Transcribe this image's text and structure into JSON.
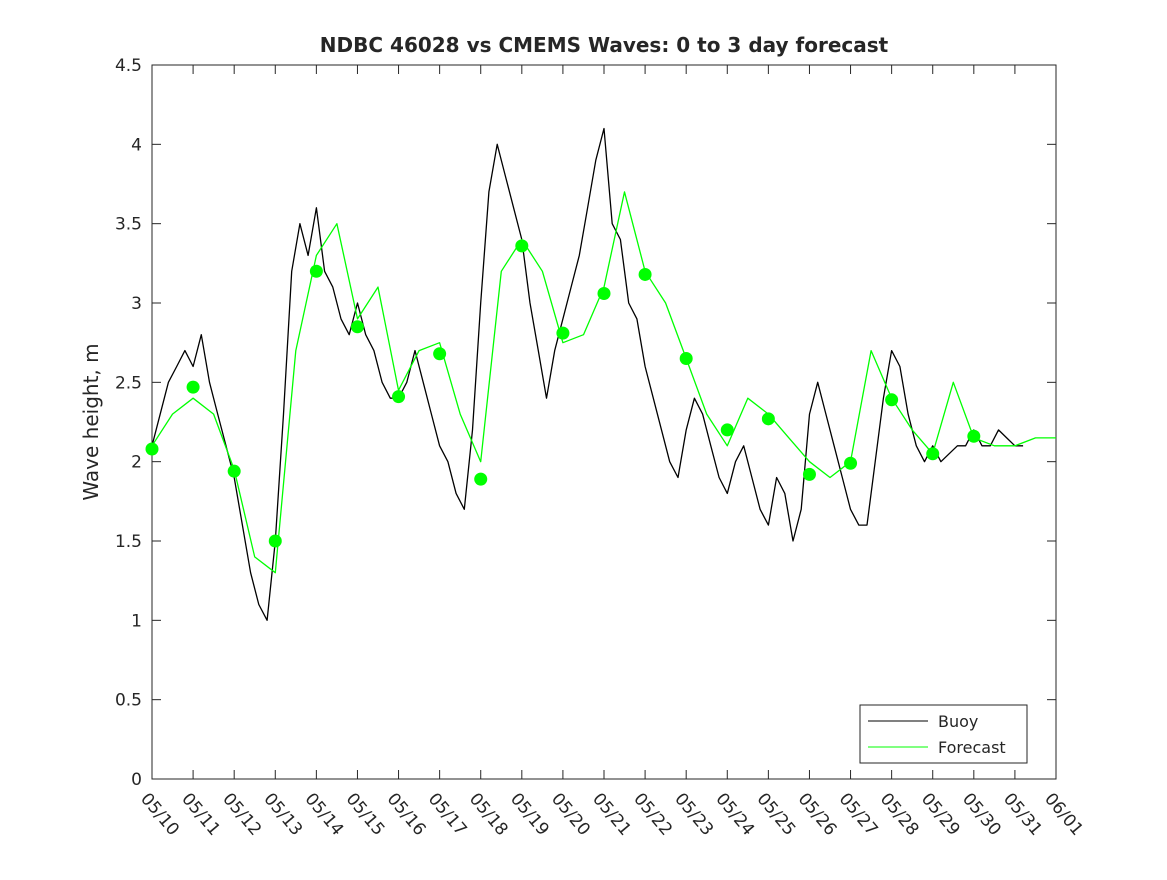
{
  "chart_data": {
    "type": "line",
    "title": "NDBC 46028 vs CMEMS Waves: 0 to 3 day forecast",
    "xlabel": "",
    "ylabel": "Wave height, m",
    "xlim": [
      0,
      22
    ],
    "ylim": [
      0,
      4.5
    ],
    "yticks": [
      0,
      0.5,
      1,
      1.5,
      2,
      2.5,
      3,
      3.5,
      4,
      4.5
    ],
    "xtick_labels": [
      "05/10",
      "05/11",
      "05/12",
      "05/13",
      "05/14",
      "05/15",
      "05/16",
      "05/17",
      "05/18",
      "05/19",
      "05/20",
      "05/21",
      "05/22",
      "05/23",
      "05/24",
      "05/25",
      "05/26",
      "05/27",
      "05/28",
      "05/29",
      "05/30",
      "05/31",
      "06/01"
    ],
    "legend": {
      "position": "bottom-right",
      "entries": [
        "Buoy",
        "Forecast"
      ]
    },
    "grid": false,
    "colors": {
      "buoy": "#000000",
      "forecast": "#00ff00",
      "axes": "#262626"
    },
    "series": [
      {
        "name": "Buoy",
        "x": [
          0,
          0.2,
          0.4,
          0.6,
          0.8,
          1.0,
          1.2,
          1.4,
          1.6,
          1.8,
          2.0,
          2.2,
          2.4,
          2.6,
          2.8,
          3.0,
          3.2,
          3.4,
          3.6,
          3.8,
          4.0,
          4.2,
          4.4,
          4.6,
          4.8,
          5.0,
          5.2,
          5.4,
          5.6,
          5.8,
          6.0,
          6.2,
          6.4,
          6.6,
          6.8,
          7.0,
          7.2,
          7.4,
          7.6,
          7.8,
          8.0,
          8.2,
          8.4,
          8.6,
          8.8,
          9.0,
          9.2,
          9.4,
          9.6,
          9.8,
          10.0,
          10.2,
          10.4,
          10.6,
          10.8,
          11.0,
          11.2,
          11.4,
          11.6,
          11.8,
          12.0,
          12.2,
          12.4,
          12.6,
          12.8,
          13.0,
          13.2,
          13.4,
          13.6,
          13.8,
          14.0,
          14.2,
          14.4,
          14.6,
          14.8,
          15.0,
          15.2,
          15.4,
          15.6,
          15.8,
          16.0,
          16.2,
          16.4,
          16.6,
          16.8,
          17.0,
          17.2,
          17.4,
          17.6,
          17.8,
          18.0,
          18.2,
          18.4,
          18.6,
          18.8,
          19.0,
          19.2,
          19.4,
          19.6,
          19.8,
          20.0,
          20.2,
          20.4,
          20.6,
          20.8,
          21.0,
          21.2
        ],
        "y": [
          2.1,
          2.3,
          2.5,
          2.6,
          2.7,
          2.6,
          2.8,
          2.5,
          2.3,
          2.1,
          1.9,
          1.6,
          1.3,
          1.1,
          1.0,
          1.5,
          2.3,
          3.2,
          3.5,
          3.3,
          3.6,
          3.2,
          3.1,
          2.9,
          2.8,
          3.0,
          2.8,
          2.7,
          2.5,
          2.4,
          2.4,
          2.5,
          2.7,
          2.5,
          2.3,
          2.1,
          2.0,
          1.8,
          1.7,
          2.2,
          3.0,
          3.7,
          4.0,
          3.8,
          3.6,
          3.4,
          3.0,
          2.7,
          2.4,
          2.7,
          2.9,
          3.1,
          3.3,
          3.6,
          3.9,
          4.1,
          3.5,
          3.4,
          3.0,
          2.9,
          2.6,
          2.4,
          2.2,
          2.0,
          1.9,
          2.2,
          2.4,
          2.3,
          2.1,
          1.9,
          1.8,
          2.0,
          2.1,
          1.9,
          1.7,
          1.6,
          1.9,
          1.8,
          1.5,
          1.7,
          2.3,
          2.5,
          2.3,
          2.1,
          1.9,
          1.7,
          1.6,
          1.6,
          2.0,
          2.4,
          2.7,
          2.6,
          2.3,
          2.1,
          2.0,
          2.1,
          2.0,
          2.05,
          2.1,
          2.1,
          2.2,
          2.1,
          2.1,
          2.2,
          2.15,
          2.1,
          2.1
        ]
      },
      {
        "name": "Forecast",
        "x": [
          0,
          0.5,
          1.0,
          1.5,
          2.0,
          2.5,
          3.0,
          3.5,
          4.0,
          4.5,
          5.0,
          5.5,
          6.0,
          6.5,
          7.0,
          7.5,
          8.0,
          8.5,
          9.0,
          9.5,
          10.0,
          10.5,
          11.0,
          11.5,
          12.0,
          12.5,
          13.0,
          13.5,
          14.0,
          14.5,
          15.0,
          15.5,
          16.0,
          16.5,
          17.0,
          17.5,
          18.0,
          18.5,
          19.0,
          19.5,
          20.0,
          20.5,
          21.0,
          21.5,
          22.0
        ],
        "y": [
          2.1,
          2.3,
          2.4,
          2.3,
          1.95,
          1.4,
          1.3,
          2.7,
          3.3,
          3.5,
          2.9,
          3.1,
          2.45,
          2.7,
          2.75,
          2.3,
          2.0,
          3.2,
          3.4,
          3.2,
          2.75,
          2.8,
          3.1,
          3.7,
          3.2,
          3.0,
          2.65,
          2.3,
          2.1,
          2.4,
          2.3,
          2.15,
          2.0,
          1.9,
          2.0,
          2.7,
          2.4,
          2.2,
          2.05,
          2.5,
          2.15,
          2.1,
          2.1,
          2.15,
          2.15
        ]
      }
    ],
    "markers": {
      "name": "Forecast",
      "x": [
        0,
        1,
        2,
        3,
        4,
        5,
        6,
        7,
        8,
        9,
        10,
        11,
        12,
        13,
        14,
        15,
        16,
        17,
        18,
        19,
        20
      ],
      "y": [
        2.08,
        2.47,
        1.94,
        1.5,
        3.2,
        2.85,
        2.41,
        2.68,
        1.89,
        3.36,
        2.81,
        3.06,
        3.18,
        2.65,
        2.2,
        2.27,
        1.92,
        1.99,
        2.39,
        2.05,
        2.16
      ]
    }
  }
}
